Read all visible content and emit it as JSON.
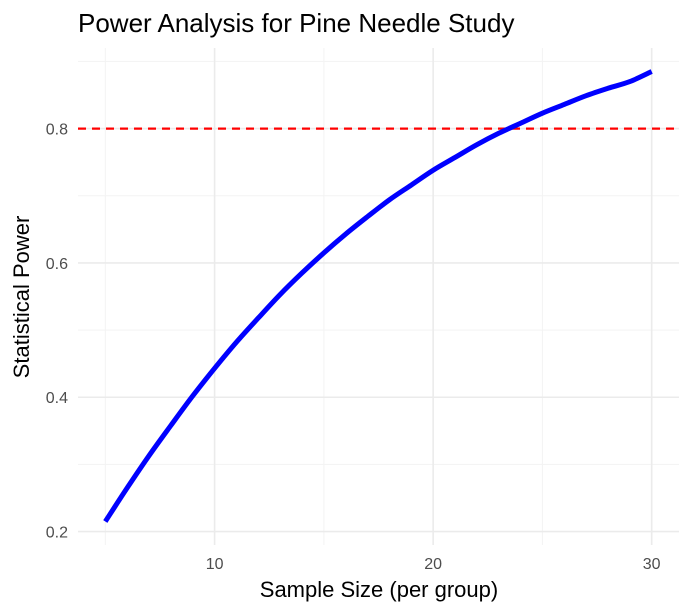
{
  "chart_data": {
    "type": "line",
    "title": "Power Analysis for Pine Needle Study",
    "xlabel": "Sample Size (per group)",
    "ylabel": "Statistical Power",
    "xlim": [
      3.75,
      31.25
    ],
    "ylim": [
      0.18,
      0.92
    ],
    "x_ticks": [
      10,
      20,
      30
    ],
    "y_ticks": [
      0.2,
      0.4,
      0.6,
      0.8
    ],
    "x_tick_labels": [
      "10",
      "20",
      "30"
    ],
    "y_tick_labels": [
      "0.2",
      "0.4",
      "0.6",
      "0.8"
    ],
    "grid": true,
    "series": [
      {
        "color": "#0000ff",
        "x": [
          5,
          6,
          7,
          8,
          9,
          10,
          11,
          12,
          13,
          14,
          15,
          16,
          17,
          18,
          19,
          20,
          21,
          22,
          23,
          24,
          25,
          26,
          27,
          28,
          29,
          30
        ],
        "y": [
          0.215,
          0.265,
          0.313,
          0.358,
          0.402,
          0.443,
          0.482,
          0.518,
          0.553,
          0.585,
          0.615,
          0.643,
          0.669,
          0.694,
          0.716,
          0.738,
          0.757,
          0.776,
          0.793,
          0.808,
          0.823,
          0.836,
          0.849,
          0.86,
          0.87,
          0.885
        ]
      }
    ],
    "reference_line": {
      "orientation": "horizontal",
      "y": 0.8,
      "color": "#ff0000",
      "style": "dashed"
    }
  }
}
